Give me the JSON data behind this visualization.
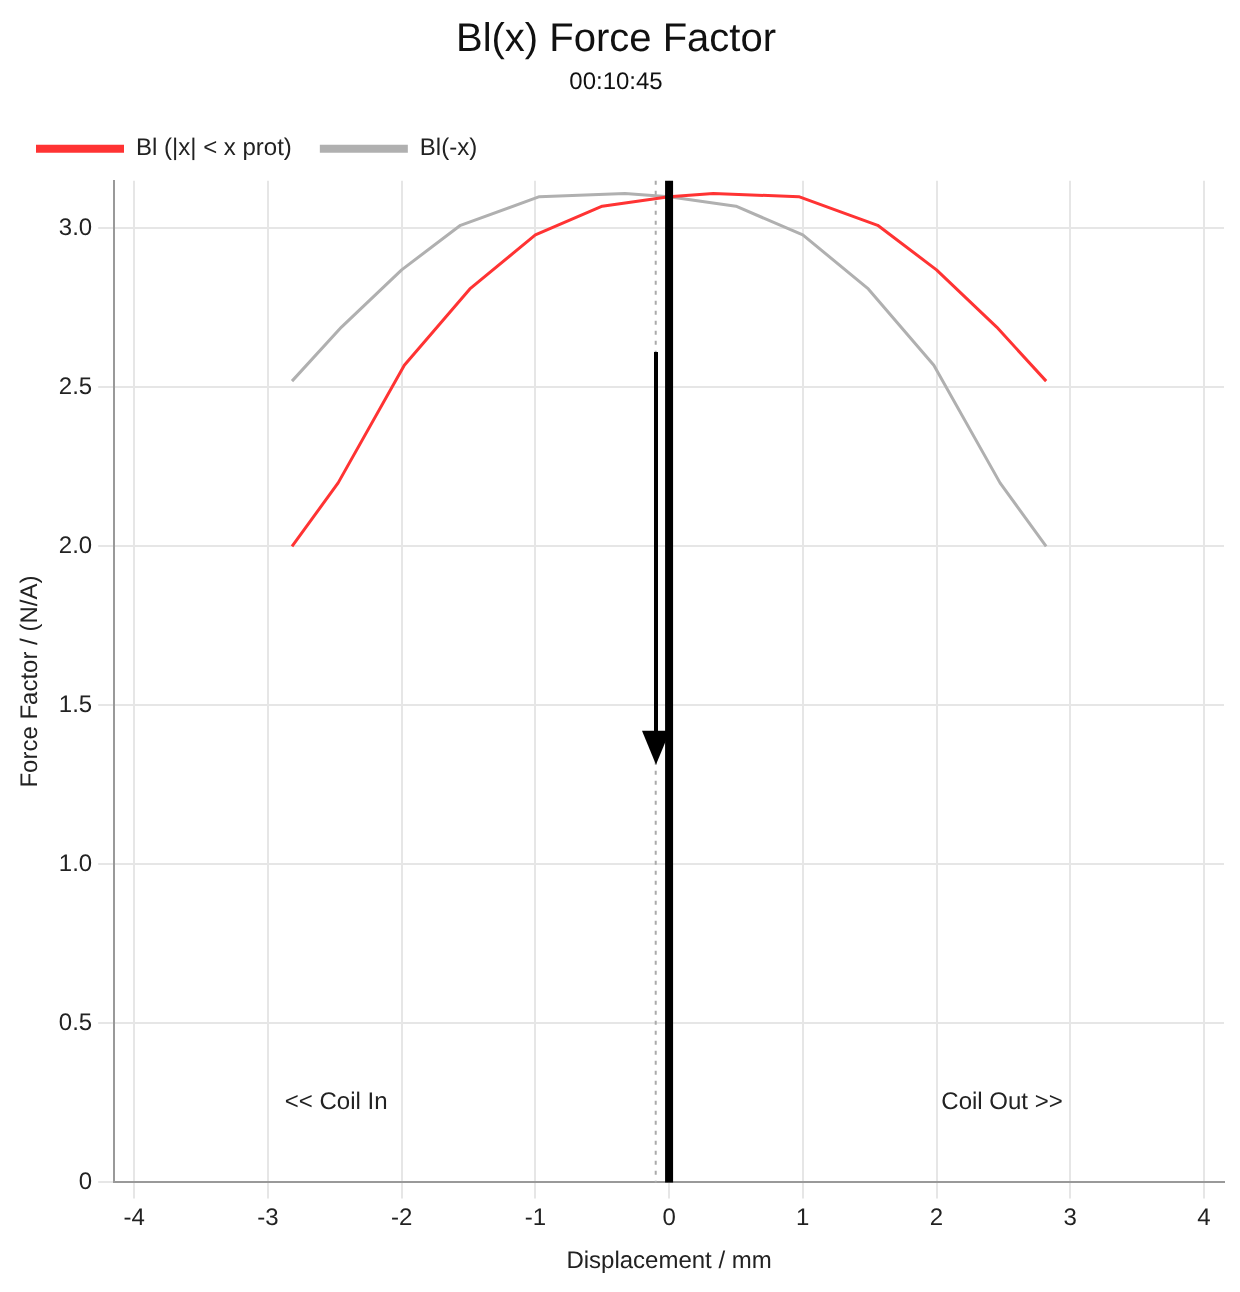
{
  "chart_data": {
    "type": "line",
    "title": "Bl(x) Force Factor",
    "subtitle": "00:10:45",
    "xlabel": "Displacement / mm",
    "ylabel": "Force Factor / (N/A)",
    "series": [
      {
        "name": "Bl (|x| < x prot)",
        "color": "#ff3333",
        "x": [
          -2.82,
          -2.475,
          -1.98,
          -1.49,
          -1.0,
          -0.5,
          0,
          0.33,
          0.97,
          1.56,
          2.0,
          2.45,
          2.82
        ],
        "values": [
          2.0,
          2.2,
          2.57,
          2.81,
          2.98,
          3.07,
          3.1,
          3.11,
          3.1,
          3.01,
          2.87,
          2.69,
          2.52
        ]
      },
      {
        "name": "Bl(-x)",
        "color": "#b0b0b0",
        "x": [
          -2.82,
          -2.45,
          -2.0,
          -1.56,
          -0.97,
          -0.33,
          0,
          0.5,
          1.0,
          1.49,
          1.98,
          2.475,
          2.82
        ],
        "values": [
          2.52,
          2.69,
          2.87,
          3.01,
          3.1,
          3.11,
          3.1,
          3.07,
          2.98,
          2.81,
          2.57,
          2.2,
          2.0
        ]
      }
    ],
    "xlim": [
      -4.15,
      4.15
    ],
    "xticks": [
      -4,
      -3,
      -2,
      -1,
      0,
      1,
      2,
      3,
      4
    ],
    "ylim": [
      0,
      3.15
    ],
    "yticks": [
      0,
      0.5,
      {
        "value": 1,
        "label": "1.0"
      },
      {
        "value": 1.5,
        "label": "1.5"
      },
      {
        "value": 2,
        "label": "2.0"
      },
      {
        "value": 2.5,
        "label": "2.5"
      },
      {
        "value": 3,
        "label": "3.0"
      }
    ],
    "ref_lines": [
      {
        "axis": "x",
        "value": 0,
        "color": "#000000",
        "line_style": "solid"
      },
      {
        "axis": "x",
        "value": -0.1,
        "color": "#aaaaaa",
        "line_style": "dotted"
      }
    ],
    "annotations": [
      "<< Coil In",
      "Coil Out >>"
    ],
    "grid": true,
    "legend": "top left",
    "marker": "none",
    "line_style": "solid"
  }
}
